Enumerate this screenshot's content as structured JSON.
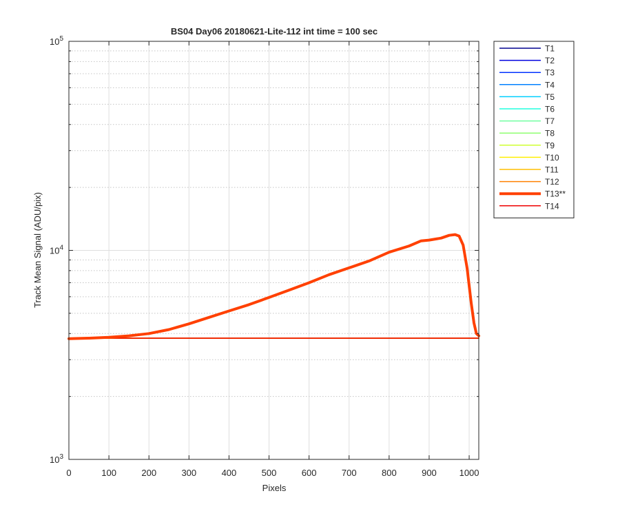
{
  "chart_data": {
    "type": "line",
    "title": "BS04 Day06 20180621-Lite-112 int time = 100 sec",
    "xlabel": "Pixels",
    "ylabel": "Track Mean Signal (ADU/pix)",
    "xlim": [
      0,
      1024
    ],
    "ylim": [
      1000,
      100000
    ],
    "yscale": "log",
    "grid": true,
    "legend_position": "outside-right",
    "x_ticks": [
      0,
      100,
      200,
      300,
      400,
      500,
      600,
      700,
      800,
      900,
      1000
    ],
    "x_tick_labels": [
      "0",
      "100",
      "200",
      "300",
      "400",
      "500",
      "600",
      "700",
      "800",
      "900",
      "1000"
    ],
    "y_ticks": [
      {
        "value": 1000,
        "base": "10",
        "exp": "3"
      },
      {
        "value": 10000,
        "base": "10",
        "exp": "4"
      },
      {
        "value": 100000,
        "base": "10",
        "exp": "5"
      }
    ],
    "series": [
      {
        "name": "T1",
        "color": "#00008f",
        "width": 1.5,
        "x": [
          0,
          1024
        ],
        "y": [
          3800,
          3800
        ]
      },
      {
        "name": "T2",
        "color": "#0000df",
        "width": 1.5,
        "x": [
          0,
          1024
        ],
        "y": [
          3800,
          3800
        ]
      },
      {
        "name": "T3",
        "color": "#0030ff",
        "width": 1.5,
        "x": [
          0,
          1024
        ],
        "y": [
          3800,
          3800
        ]
      },
      {
        "name": "T4",
        "color": "#0080ff",
        "width": 1.5,
        "x": [
          0,
          1024
        ],
        "y": [
          3800,
          3800
        ]
      },
      {
        "name": "T5",
        "color": "#00cfff",
        "width": 1.5,
        "x": [
          0,
          1024
        ],
        "y": [
          3800,
          3800
        ]
      },
      {
        "name": "T6",
        "color": "#20ffdf",
        "width": 1.5,
        "x": [
          0,
          1024
        ],
        "y": [
          3800,
          3800
        ]
      },
      {
        "name": "T7",
        "color": "#70ffa0",
        "width": 1.5,
        "x": [
          0,
          1024
        ],
        "y": [
          3800,
          3800
        ]
      },
      {
        "name": "T8",
        "color": "#8fff70",
        "width": 1.5,
        "x": [
          0,
          1024
        ],
        "y": [
          3800,
          3800
        ]
      },
      {
        "name": "T9",
        "color": "#cfff30",
        "width": 1.5,
        "x": [
          0,
          1024
        ],
        "y": [
          3800,
          3800
        ]
      },
      {
        "name": "T10",
        "color": "#ffef00",
        "width": 1.5,
        "x": [
          0,
          1024
        ],
        "y": [
          3800,
          3800
        ]
      },
      {
        "name": "T11",
        "color": "#ffbf00",
        "width": 1.5,
        "x": [
          0,
          1024
        ],
        "y": [
          3800,
          3800
        ]
      },
      {
        "name": "T12",
        "color": "#ff8000",
        "width": 1.5,
        "x": [
          0,
          1024
        ],
        "y": [
          3800,
          3800
        ]
      },
      {
        "name": "T13**",
        "color": "#ff4000",
        "width": 4,
        "x": [
          0,
          50,
          100,
          150,
          200,
          250,
          300,
          350,
          400,
          450,
          500,
          550,
          600,
          650,
          700,
          750,
          800,
          850,
          880,
          900,
          930,
          950,
          965,
          975,
          985,
          995,
          1005,
          1012,
          1018,
          1024
        ],
        "y": [
          3780,
          3800,
          3840,
          3900,
          4000,
          4180,
          4450,
          4780,
          5130,
          5500,
          5950,
          6450,
          7000,
          7650,
          8250,
          8900,
          9800,
          10500,
          11100,
          11200,
          11450,
          11800,
          11900,
          11700,
          10600,
          8200,
          5600,
          4500,
          4000,
          3900
        ]
      },
      {
        "name": "T14",
        "color": "#ef0000",
        "width": 1.5,
        "x": [
          0,
          1024
        ],
        "y": [
          3800,
          3800
        ]
      }
    ]
  }
}
